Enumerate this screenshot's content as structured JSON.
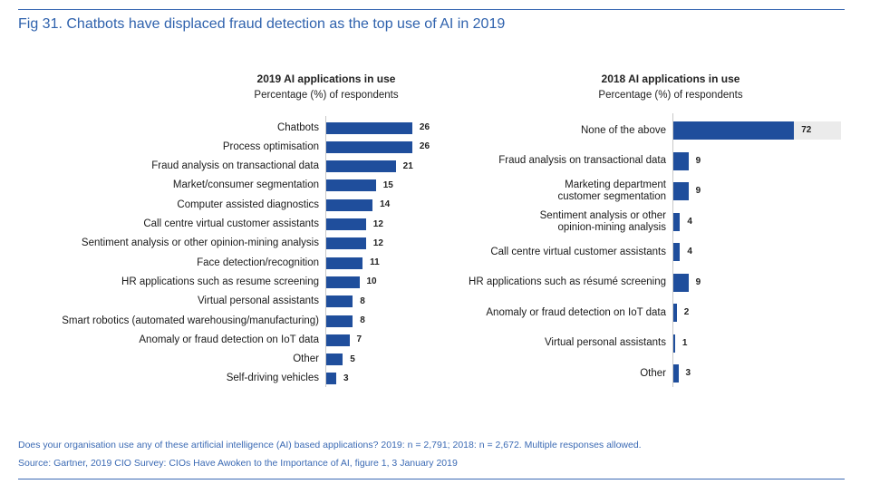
{
  "title": "Fig 31. Chatbots have displaced fraud detection as the top use of AI in 2019",
  "colors": {
    "bar": "#1f4e9c",
    "title": "#2f62ad",
    "track": "#ebebeb"
  },
  "chart_data": [
    {
      "type": "bar",
      "orientation": "horizontal",
      "title": "2019 AI applications in use",
      "subtitle": "Percentage (%) of respondents",
      "categories": [
        "Chatbots",
        "Process optimisation",
        "Fraud analysis on transactional data",
        "Market/consumer segmentation",
        "Computer assisted diagnostics",
        "Call centre virtual customer assistants",
        "Sentiment analysis or other opinion-mining analysis",
        "Face detection/recognition",
        "HR applications such as resume screening",
        "Virtual personal assistants",
        "Smart robotics (automated warehousing/manufacturing)",
        "Anomaly or fraud detection on IoT data",
        "Other",
        "Self-driving vehicles"
      ],
      "values": [
        26,
        26,
        21,
        15,
        14,
        12,
        12,
        11,
        10,
        8,
        8,
        7,
        5,
        3
      ]
    },
    {
      "type": "bar",
      "orientation": "horizontal",
      "title": "2018 AI applications in use",
      "subtitle": "Percentage (%) of respondents",
      "categories": [
        "None of the above",
        "Fraud analysis on transactional data",
        "Marketing department\ncustomer segmentation",
        "Sentiment analysis or other\nopinion-mining analysis",
        "Call centre virtual customer assistants",
        "HR applications such as résumé screening",
        "Anomaly or fraud detection on IoT data",
        "Virtual personal assistants",
        "Other"
      ],
      "values": [
        72,
        9,
        9,
        4,
        4,
        9,
        2,
        1,
        3
      ]
    }
  ],
  "footer": {
    "note": "Does your organisation use any of these artificial intelligence (AI) based applications? 2019: n = 2,791; 2018: n = 2,672. Multiple responses allowed.",
    "source": "Source: Gartner, 2019 CIO Survey: CIOs Have Awoken to the Importance of AI, figure 1, 3 January 2019"
  }
}
